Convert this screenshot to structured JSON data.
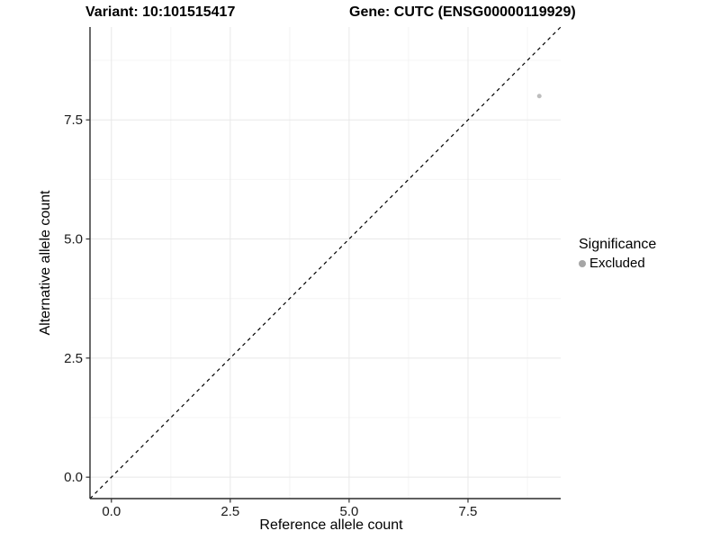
{
  "chart_data": {
    "type": "scatter",
    "title_left": "Variant: 10:101515417",
    "title_right": "Gene: CUTC (ENSG00000119929)",
    "xlabel": "Reference allele count",
    "ylabel": "Alternative allele count",
    "xlim": [
      -0.45,
      9.45
    ],
    "ylim": [
      -0.45,
      9.45
    ],
    "major_ticks": [
      0.0,
      2.5,
      5.0,
      7.5
    ],
    "tick_labels": [
      "0.0",
      "2.5",
      "5.0",
      "7.5"
    ],
    "minor_ticks": [
      1.25,
      3.75,
      6.25,
      8.75
    ],
    "grid": true,
    "identity_line": {
      "style": "dashed",
      "slope": 1,
      "intercept": 0
    },
    "series": [
      {
        "name": "Excluded",
        "points": [
          {
            "x": 9,
            "y": 8
          }
        ],
        "color": "#bdbdbd",
        "radius": 2.5
      }
    ],
    "legend": {
      "title": "Significance",
      "position": "right",
      "items": [
        {
          "label": "Excluded",
          "color": "#a6a6a6"
        }
      ]
    },
    "colors": {
      "grid_major": "#e8e8e8",
      "grid_minor": "#f4f4f4",
      "axis_line": "#2b2b2b",
      "tick_mark": "#333333",
      "identity_line": "#000000",
      "background": "#ffffff"
    }
  }
}
